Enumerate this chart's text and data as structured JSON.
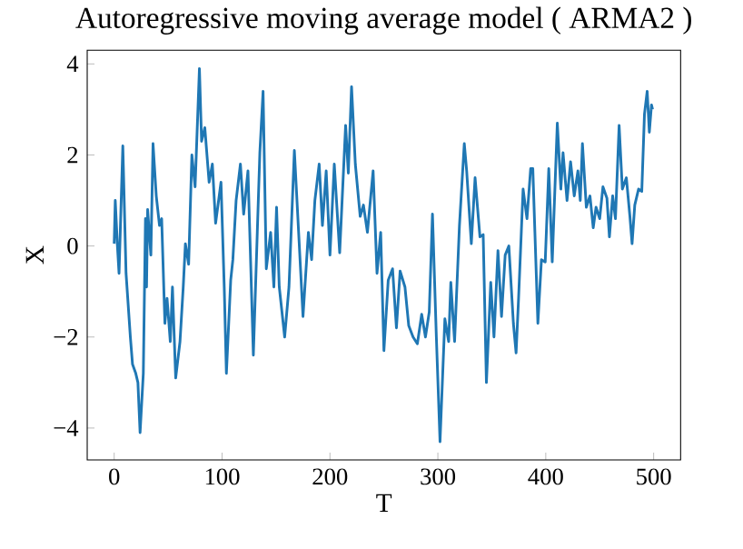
{
  "chart_data": {
    "type": "line",
    "title": "Autoregressive moving average model ( ARMA2 )",
    "xlabel": "T",
    "ylabel": "X",
    "x": [
      0,
      1,
      3,
      4.5,
      8,
      11,
      15,
      17,
      20,
      22,
      24,
      27,
      29,
      30,
      31,
      34,
      36,
      39,
      42,
      44,
      47,
      49,
      52,
      54,
      57,
      61,
      64,
      66,
      69,
      72,
      75,
      79,
      81,
      84,
      88,
      91,
      94,
      99,
      102,
      104,
      108,
      110,
      113,
      117,
      120,
      124,
      129,
      135,
      138,
      141,
      145,
      148,
      150.5,
      153,
      158,
      162,
      167,
      175,
      180,
      183,
      186,
      190,
      193,
      196.5,
      200,
      204,
      209,
      214.5,
      217,
      220,
      223.5,
      228,
      231,
      234.7,
      240,
      243.6,
      247,
      250,
      254,
      258,
      261.6,
      265,
      269.5,
      273,
      277,
      281,
      285,
      288.5,
      292,
      295,
      298.6,
      302,
      306.5,
      310,
      312,
      315.5,
      320,
      324.5,
      326.7,
      331,
      334.5,
      339,
      342,
      345,
      349,
      352,
      355.7,
      359,
      362.4,
      365.8,
      370,
      372.5,
      374.8,
      379,
      382.6,
      386,
      388,
      392.7,
      396,
      399.5,
      402.8,
      406,
      410.7,
      414,
      416,
      419.7,
      423,
      426.4,
      429.8,
      432,
      434,
      437.6,
      441,
      444,
      446.6,
      450,
      453,
      456.7,
      459,
      462,
      464.6,
      468,
      471,
      474.7,
      478,
      480,
      482.5,
      486,
      489,
      491.5,
      494,
      496,
      498,
      499
    ],
    "series": [
      {
        "color": "#1f77b4",
        "values": [
          0.05,
          1.0,
          0,
          -0.6,
          2.2,
          -0.6,
          -2.0,
          -2.6,
          -2.8,
          -3.0,
          -4.1,
          -2.8,
          0.6,
          -0.9,
          0.8,
          -0.2,
          2.25,
          1.1,
          0.45,
          0.6,
          -1.7,
          -1.15,
          -2.1,
          -0.9,
          -2.9,
          -2.1,
          -0.9,
          0.05,
          -0.4,
          2.0,
          1.3,
          3.9,
          2.3,
          2.6,
          1.4,
          1.8,
          0.5,
          1.4,
          -0.9,
          -2.8,
          -0.75,
          -0.3,
          1.0,
          1.8,
          0.7,
          1.65,
          -2.4,
          2.05,
          3.4,
          -0.5,
          0.3,
          -0.9,
          0.85,
          -0.9,
          -2.0,
          -0.9,
          2.1,
          -1.55,
          0.3,
          -0.3,
          1.0,
          1.8,
          0.45,
          1.65,
          -0.2,
          1.8,
          -0.15,
          2.65,
          1.6,
          3.5,
          1.8,
          0.65,
          0.9,
          0.3,
          1.65,
          -0.6,
          0.3,
          -2.3,
          -0.75,
          -0.5,
          -1.8,
          -0.55,
          -0.9,
          -1.75,
          -2.0,
          -2.15,
          -1.5,
          -2.0,
          -1.45,
          0.7,
          -2.0,
          -4.3,
          -1.6,
          -2.1,
          -0.8,
          -2.1,
          0.45,
          2.25,
          1.65,
          0.05,
          1.5,
          0.2,
          0.25,
          -3.0,
          -0.8,
          -2.0,
          -0.1,
          -1.55,
          -0.2,
          0,
          -1.7,
          -2.35,
          -1.15,
          1.25,
          0.6,
          1.7,
          1.7,
          -1.7,
          -0.3,
          -0.35,
          1.7,
          -0.35,
          2.7,
          1.25,
          2.05,
          1.0,
          1.85,
          1.1,
          1.65,
          1.0,
          2.25,
          0.85,
          1.1,
          0.4,
          0.85,
          0.6,
          1.3,
          1.05,
          0.2,
          1.1,
          0.6,
          2.65,
          1.25,
          1.5,
          0.65,
          0.05,
          0.9,
          1.25,
          1.2,
          2.9,
          3.4,
          2.5,
          3.1,
          3.0
        ]
      }
    ],
    "xlim": [
      -25,
      525
    ],
    "ylim": [
      -4.7,
      4.3
    ],
    "xticks": [
      0,
      100,
      200,
      300,
      400,
      500
    ],
    "yticks": [
      {
        "value": -4,
        "label": "−4"
      },
      {
        "value": -2,
        "label": "−2"
      },
      0,
      2,
      4
    ],
    "grid": false,
    "marker": "none",
    "line_style": "solid"
  }
}
